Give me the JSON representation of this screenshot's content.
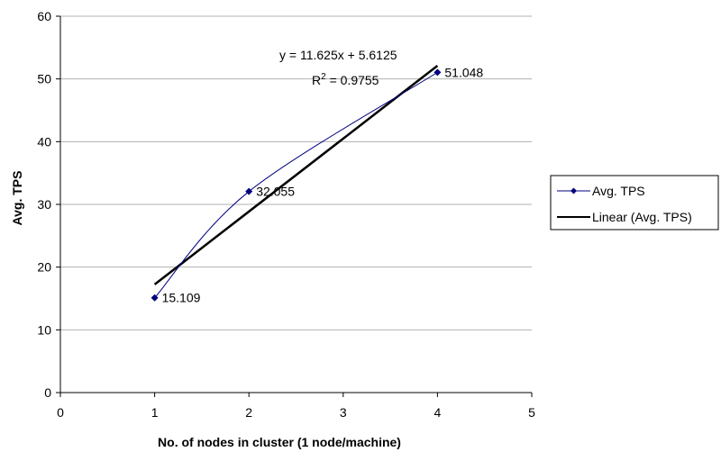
{
  "chart_data": {
    "type": "scatter",
    "xlabel": "No. of nodes in cluster (1 node/machine)",
    "ylabel": "Avg. TPS",
    "xlim": [
      0,
      5
    ],
    "ylim": [
      0,
      60
    ],
    "x_ticks": [
      0,
      1,
      2,
      3,
      4,
      5
    ],
    "y_ticks": [
      0,
      10,
      20,
      30,
      40,
      50,
      60
    ],
    "grid": "horizontal",
    "legend_position": "right",
    "series": [
      {
        "name": "Avg. TPS",
        "x": [
          1,
          2,
          4
        ],
        "y": [
          15.109,
          32.055,
          51.048
        ],
        "data_labels": [
          "15.109",
          "32.055",
          "51.048"
        ],
        "style": "smoothed-line-with-diamond-markers",
        "color": "#000080"
      }
    ],
    "trendline": {
      "name": "Linear (Avg. TPS)",
      "type": "linear",
      "slope": 11.625,
      "intercept": 5.6125,
      "x_range": [
        1,
        4
      ],
      "equation": "y = 11.625x + 5.6125",
      "r_squared_label": "R",
      "r_squared_sup": "2",
      "r_squared_value": " = 0.9755",
      "color": "#000000"
    }
  }
}
